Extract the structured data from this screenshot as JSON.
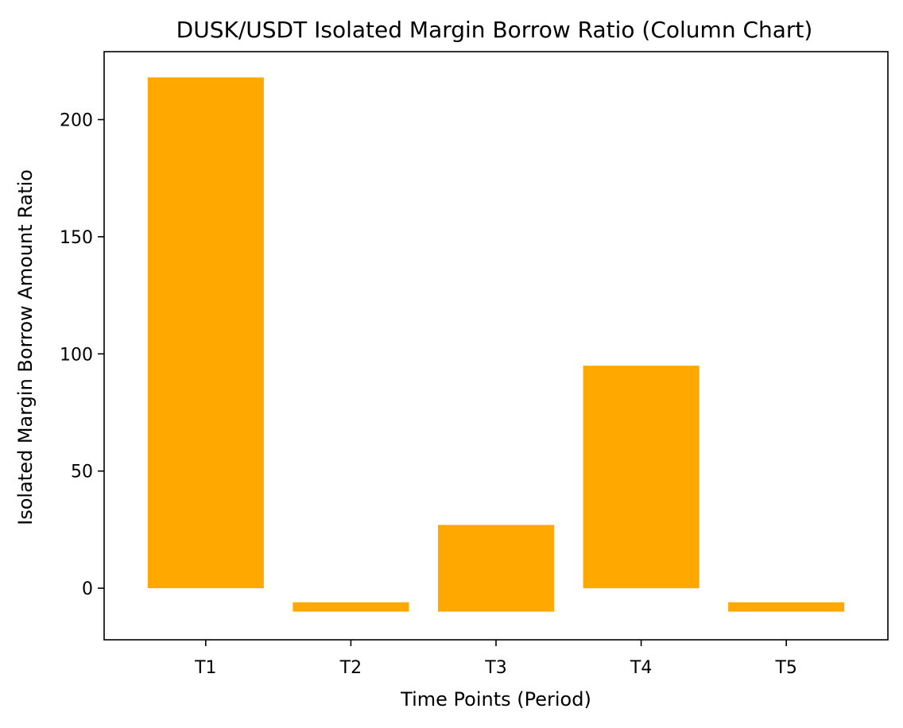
{
  "chart_data": {
    "type": "bar",
    "title": "DUSK/USDT Isolated Margin Borrow Ratio (Column Chart)",
    "xlabel": "Time Points (Period)",
    "ylabel": "Isolated Margin Borrow Amount Ratio",
    "categories": [
      "T1",
      "T2",
      "T3",
      "T4",
      "T5"
    ],
    "bars": [
      {
        "category": "T1",
        "bottom": 0,
        "top": 218
      },
      {
        "category": "T2",
        "bottom": -10,
        "top": -6
      },
      {
        "category": "T3",
        "bottom": -10,
        "top": 27
      },
      {
        "category": "T4",
        "bottom": 0,
        "top": 95
      },
      {
        "category": "T5",
        "bottom": -10,
        "top": -6
      }
    ],
    "yticks": [
      0,
      50,
      100,
      150,
      200
    ],
    "ylim": [
      -22,
      229
    ],
    "grid": false,
    "legend": false,
    "bar_color": "#ffa900"
  }
}
